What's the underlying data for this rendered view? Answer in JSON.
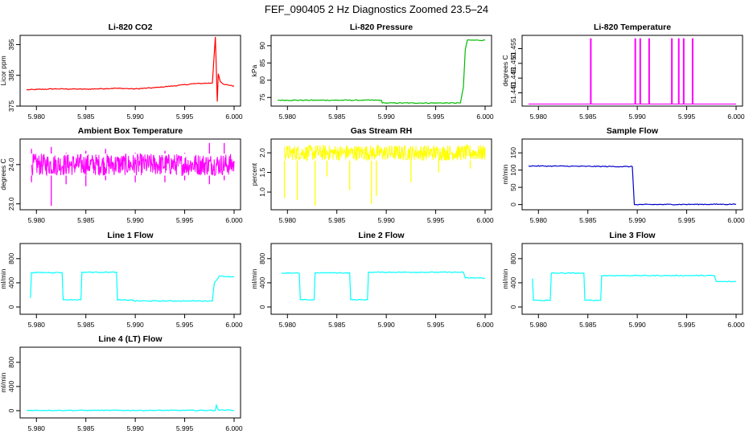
{
  "page_title": "FEF_090405  2 Hz Diagnostics Zoomed 23.5–24",
  "chart_data": [
    {
      "type": "line",
      "title": "Li-820 CO2",
      "ylabel": "Licor ppm",
      "xlim": [
        5.979,
        6.0
      ],
      "ylim": [
        375,
        398
      ],
      "xticks": [
        5.98,
        5.985,
        5.99,
        5.995,
        6.0
      ],
      "xtick_labels": [
        "5.980",
        "5.985",
        "5.990",
        "5.995",
        "6.000"
      ],
      "yticks": [
        375,
        385,
        395
      ],
      "ytick_labels": [
        "375",
        "385",
        "395"
      ],
      "series": [
        {
          "color": "#ff0000",
          "x": [
            5.979,
            5.982,
            5.985,
            5.988,
            5.99,
            5.992,
            5.994,
            5.996,
            5.9978,
            5.9981,
            5.9983,
            5.9984,
            5.9986,
            5.999,
            6.0
          ],
          "y": [
            380.3,
            380.6,
            380.5,
            380.8,
            380.6,
            381.0,
            381.6,
            382.3,
            382.5,
            397.5,
            376.5,
            385.5,
            383.0,
            382.0,
            381.5
          ]
        }
      ]
    },
    {
      "type": "line",
      "title": "Li-820 Pressure",
      "ylabel": "kPa",
      "xlim": [
        5.979,
        6.0
      ],
      "ylim": [
        72.5,
        93
      ],
      "xticks": [
        5.98,
        5.985,
        5.99,
        5.995,
        6.0
      ],
      "xtick_labels": [
        "5.980",
        "5.985",
        "5.990",
        "5.995",
        "6.000"
      ],
      "yticks": [
        75,
        80,
        85,
        90
      ],
      "ytick_labels": [
        "75",
        "80",
        "85",
        "90"
      ],
      "series": [
        {
          "color": "#00bb00",
          "x": [
            5.979,
            5.9895,
            5.9896,
            5.9975,
            5.9978,
            5.998,
            5.9982,
            6.0
          ],
          "y": [
            74.2,
            74.2,
            73.4,
            73.4,
            78.0,
            89.0,
            91.6,
            91.6
          ]
        }
      ]
    },
    {
      "type": "line",
      "title": "Li-820 Temperature",
      "ylabel": "degrees C",
      "xlim": [
        5.979,
        6.0
      ],
      "ylim": [
        51.4355,
        51.4595
      ],
      "xticks": [
        5.98,
        5.985,
        5.99,
        5.995,
        6.0
      ],
      "xtick_labels": [
        "5.980",
        "5.985",
        "5.990",
        "5.995",
        "6.000"
      ],
      "yticks": [
        51.44,
        51.445,
        51.45,
        51.455
      ],
      "ytick_labels": [
        "51.440",
        "51.445",
        "51.450",
        "51.455"
      ],
      "series": [
        {
          "color": "#ff00ff",
          "baseline": 51.4362,
          "spike_x": [
            5.9853,
            5.9898,
            5.9903,
            5.9912,
            5.9935,
            5.9942,
            5.9947,
            5.9956
          ],
          "spike_top": [
            51.4585,
            51.4585,
            51.4585,
            51.4585,
            51.4585,
            51.4585,
            51.4585,
            51.4585
          ]
        }
      ]
    },
    {
      "type": "line",
      "title": "Ambient Box Temperature",
      "ylabel": "degrees C",
      "xlim": [
        5.979,
        6.0
      ],
      "ylim": [
        22.85,
        24.65
      ],
      "xticks": [
        5.98,
        5.985,
        5.99,
        5.995,
        6.0
      ],
      "xtick_labels": [
        "5.980",
        "5.985",
        "5.990",
        "5.995",
        "6.000"
      ],
      "yticks": [
        23.0,
        24.0
      ],
      "ytick_labels": [
        "23.0",
        "24.0"
      ],
      "series": [
        {
          "color": "#ff00ff",
          "band_low": 23.72,
          "band_high": 24.28,
          "x": [
            5.9795,
            5.9815,
            5.983,
            5.985,
            5.987,
            5.99,
            5.993,
            5.995,
            5.9975,
            5.999
          ],
          "y_low": [
            23.55,
            22.95,
            23.5,
            23.45,
            23.6,
            23.55,
            23.55,
            23.6,
            23.5,
            23.6
          ],
          "y_high": [
            24.4,
            24.45,
            24.3,
            24.35,
            24.4,
            24.3,
            24.35,
            24.3,
            24.55,
            24.55
          ]
        }
      ]
    },
    {
      "type": "line",
      "title": "Gas Stream RH",
      "ylabel": "percent",
      "xlim": [
        5.979,
        6.0
      ],
      "ylim": [
        0.55,
        2.35
      ],
      "xticks": [
        5.98,
        5.985,
        5.99,
        5.995,
        6.0
      ],
      "xtick_labels": [
        "5.980",
        "5.985",
        "5.990",
        "5.995",
        "6.000"
      ],
      "yticks": [
        1.0,
        1.5,
        2.0
      ],
      "ytick_labels": [
        "1.0",
        "1.5",
        "2.0"
      ],
      "series": [
        {
          "color": "#ffff00",
          "band_low": 1.8,
          "band_high": 2.2,
          "x": [
            5.9797,
            5.981,
            5.9828,
            5.984,
            5.9863,
            5.9885,
            5.989,
            5.9925,
            5.9953,
            5.9985
          ],
          "y_low": [
            0.85,
            0.8,
            0.65,
            1.4,
            1.05,
            0.7,
            0.9,
            1.25,
            1.5,
            1.6
          ]
        }
      ]
    },
    {
      "type": "line",
      "title": "Sample Flow",
      "ylabel": "ml/min",
      "xlim": [
        5.979,
        6.0
      ],
      "ylim": [
        -15,
        190
      ],
      "xticks": [
        5.98,
        5.985,
        5.99,
        5.995,
        6.0
      ],
      "xtick_labels": [
        "5.980",
        "5.985",
        "5.990",
        "5.995",
        "6.000"
      ],
      "yticks": [
        0,
        50,
        100,
        150
      ],
      "ytick_labels": [
        "0",
        "50",
        "100",
        "150"
      ],
      "series": [
        {
          "color": "#0000cc",
          "x": [
            5.979,
            5.9895,
            5.9897,
            6.0
          ],
          "y": [
            112,
            110,
            0,
            1
          ]
        }
      ]
    },
    {
      "type": "line",
      "title": "Line 1 Flow",
      "ylabel": "ml/min",
      "xlim": [
        5.979,
        6.0
      ],
      "ylim": [
        -120,
        1050
      ],
      "xticks": [
        5.98,
        5.985,
        5.99,
        5.995,
        6.0
      ],
      "xtick_labels": [
        "5.980",
        "5.985",
        "5.990",
        "5.995",
        "6.000"
      ],
      "yticks": [
        0,
        400,
        800
      ],
      "ytick_labels": [
        "0",
        "400",
        "800"
      ],
      "series": [
        {
          "color": "#00ffff",
          "x": [
            5.9794,
            5.9795,
            5.9826,
            5.9827,
            5.9845,
            5.9846,
            5.9881,
            5.9882,
            5.9898,
            5.9899,
            5.9978,
            5.998,
            5.9985,
            6.0
          ],
          "y": [
            150,
            570,
            570,
            120,
            120,
            575,
            575,
            115,
            115,
            100,
            100,
            400,
            510,
            500
          ]
        }
      ]
    },
    {
      "type": "line",
      "title": "Line 2 Flow",
      "ylabel": "ml/min",
      "xlim": [
        5.979,
        6.0
      ],
      "ylim": [
        -120,
        1050
      ],
      "xticks": [
        5.98,
        5.985,
        5.99,
        5.995,
        6.0
      ],
      "xtick_labels": [
        "5.980",
        "5.985",
        "5.990",
        "5.995",
        "6.000"
      ],
      "yticks": [
        0,
        400,
        800
      ],
      "ytick_labels": [
        "0",
        "400",
        "800"
      ],
      "series": [
        {
          "color": "#00ffff",
          "x": [
            5.9794,
            5.9812,
            5.9813,
            5.9827,
            5.9828,
            5.9863,
            5.9864,
            5.9881,
            5.9882,
            5.9978,
            5.998,
            6.0
          ],
          "y": [
            560,
            560,
            120,
            120,
            565,
            565,
            120,
            120,
            575,
            575,
            480,
            480
          ]
        }
      ]
    },
    {
      "type": "line",
      "title": "Line 3 Flow",
      "ylabel": "ml/min",
      "xlim": [
        5.979,
        6.0
      ],
      "ylim": [
        -120,
        1050
      ],
      "xticks": [
        5.98,
        5.985,
        5.99,
        5.995,
        6.0
      ],
      "xtick_labels": [
        "5.980",
        "5.985",
        "5.990",
        "5.995",
        "6.000"
      ],
      "yticks": [
        0,
        400,
        800
      ],
      "ytick_labels": [
        "0",
        "400",
        "800"
      ],
      "series": [
        {
          "color": "#00ffff",
          "x": [
            5.9794,
            5.9795,
            5.9812,
            5.9813,
            5.9846,
            5.9847,
            5.9863,
            5.9864,
            5.9978,
            5.998,
            6.0
          ],
          "y": [
            470,
            110,
            110,
            560,
            560,
            110,
            110,
            520,
            520,
            420,
            420
          ]
        }
      ]
    },
    {
      "type": "line",
      "title": "Line 4 (LT) Flow",
      "ylabel": "ml/min",
      "xlim": [
        5.979,
        6.0
      ],
      "ylim": [
        -120,
        1050
      ],
      "xticks": [
        5.98,
        5.985,
        5.99,
        5.995,
        6.0
      ],
      "xtick_labels": [
        "5.980",
        "5.985",
        "5.990",
        "5.995",
        "6.000"
      ],
      "yticks": [
        0,
        400,
        800
      ],
      "ytick_labels": [
        "0",
        "400",
        "800"
      ],
      "series": [
        {
          "color": "#00ffff",
          "x": [
            5.979,
            5.9981,
            5.9982,
            5.9984,
            6.0
          ],
          "y": [
            5,
            5,
            90,
            10,
            8
          ]
        }
      ]
    }
  ]
}
